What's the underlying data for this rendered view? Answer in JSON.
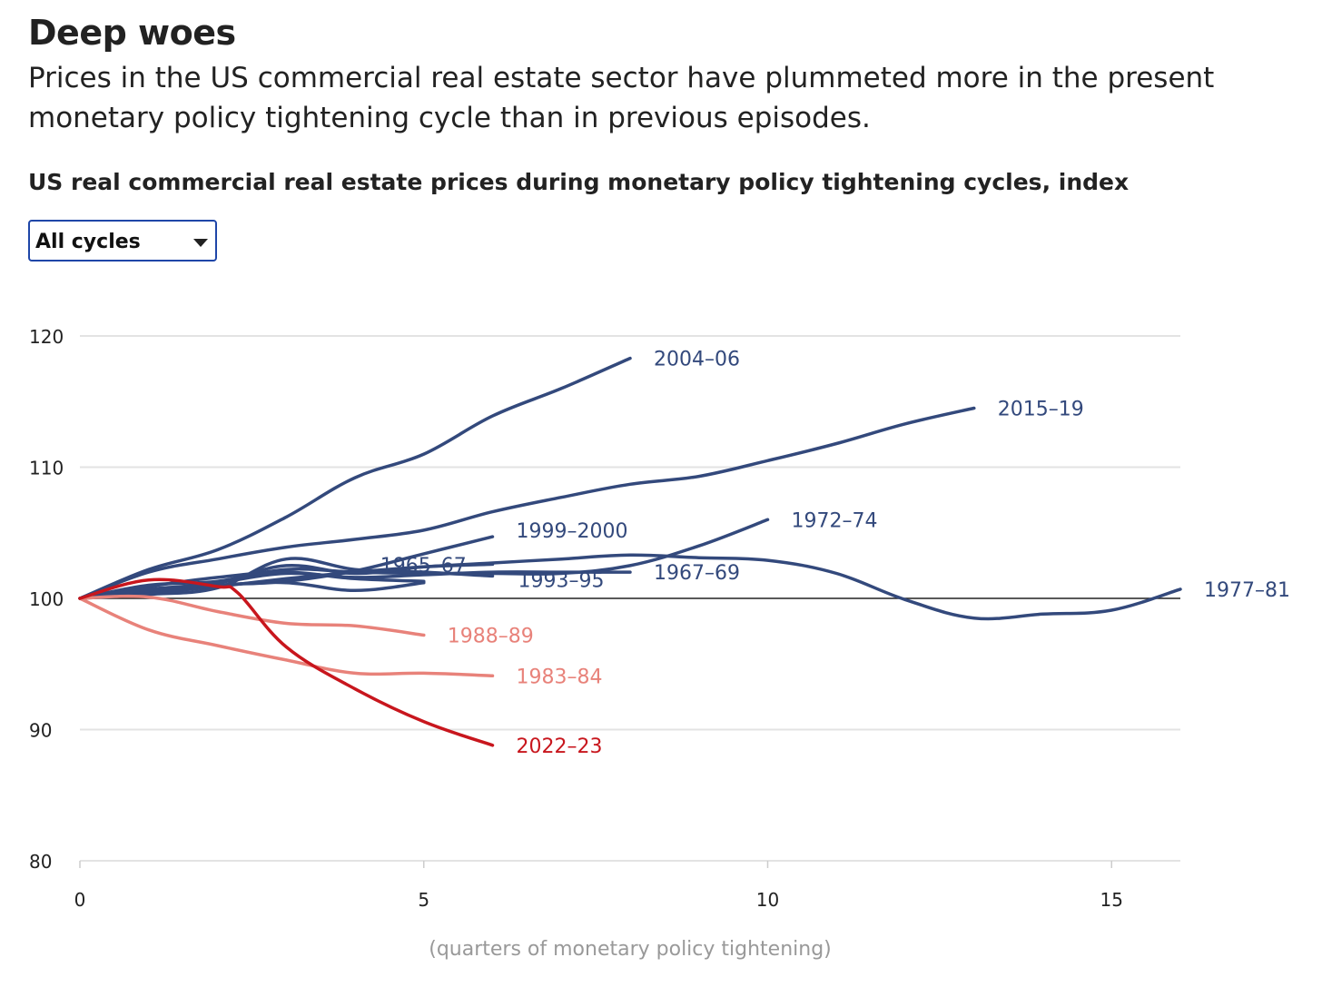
{
  "header": {
    "title": "Deep woes",
    "subtitle": "Prices in the US commercial real estate sector have plummeted more in the present monetary policy tightening cycle than in previous episodes."
  },
  "chart_title": "US real commercial real estate prices during monetary policy tightening cycles, index",
  "dropdown": {
    "selected": "All cycles",
    "icon": "caret-down-icon"
  },
  "colors": {
    "blue": "#33497c",
    "light_red": "#e8827a",
    "red": "#c8161d",
    "grid": "#e3e3e3",
    "baseline": "#222222",
    "axis_label": "#999999"
  },
  "chart_data": {
    "type": "line",
    "xlabel": "(quarters of monetary policy tightening)",
    "ylabel": "",
    "xlim": [
      0,
      16
    ],
    "ylim": [
      80,
      120
    ],
    "xticks": [
      0,
      5,
      10,
      15
    ],
    "yticks": [
      80,
      90,
      100,
      110,
      120
    ],
    "grid": true,
    "reference_line": 100,
    "series": [
      {
        "name": "2004–06",
        "color": "blue",
        "x": [
          0,
          1,
          2,
          3,
          4,
          5,
          6,
          7,
          8
        ],
        "y": [
          100,
          102.2,
          103.7,
          106.2,
          109.2,
          111.0,
          113.9,
          116.0,
          118.3
        ]
      },
      {
        "name": "2015–19",
        "color": "blue",
        "x": [
          0,
          1,
          2,
          3,
          4,
          5,
          6,
          7,
          8,
          9,
          10,
          11,
          12,
          13
        ],
        "y": [
          100,
          102.0,
          103.0,
          103.9,
          104.5,
          105.2,
          106.6,
          107.7,
          108.7,
          109.3,
          110.5,
          111.8,
          113.3,
          114.5
        ]
      },
      {
        "name": "1972–74",
        "color": "blue",
        "x": [
          0,
          1,
          2,
          3,
          4,
          5,
          6,
          7,
          8,
          9,
          10
        ],
        "y": [
          100,
          101.0,
          101.3,
          102.2,
          102.0,
          101.9,
          101.9,
          101.9,
          102.5,
          104.0,
          106.0
        ]
      },
      {
        "name": "1999–2000",
        "color": "blue",
        "x": [
          0,
          1,
          2,
          3,
          4,
          5,
          6
        ],
        "y": [
          100,
          100.5,
          101.0,
          101.3,
          102.1,
          103.4,
          104.7
        ]
      },
      {
        "name": "1977–81",
        "color": "blue",
        "x": [
          0,
          1,
          2,
          3,
          4,
          5,
          6,
          7,
          8,
          9,
          10,
          11,
          12,
          13,
          14,
          15,
          16
        ],
        "y": [
          100,
          100.4,
          100.9,
          101.5,
          102.0,
          102.4,
          102.7,
          103.0,
          103.3,
          103.1,
          102.9,
          101.9,
          99.9,
          98.5,
          98.8,
          99.1,
          100.7
        ]
      },
      {
        "name": "1967–69",
        "color": "blue",
        "x": [
          0,
          1,
          2,
          3,
          4,
          5,
          6,
          7,
          8
        ],
        "y": [
          100,
          100.6,
          101.2,
          101.9,
          101.6,
          101.8,
          102.0,
          102.0,
          102.0
        ]
      },
      {
        "name": "1965–67",
        "color": "blue",
        "x": [
          0,
          1,
          2,
          3,
          4,
          5
        ],
        "y": [
          100,
          100.9,
          101.6,
          102.0,
          101.5,
          101.3
        ]
      },
      {
        "name": "1993–95",
        "color": "blue",
        "x": [
          0,
          1,
          2,
          3,
          4,
          5,
          6
        ],
        "y": [
          100,
          100.3,
          100.8,
          103.0,
          102.2,
          102.0,
          101.7
        ]
      },
      {
        "name": "",
        "color": "blue",
        "x": [
          0,
          1,
          2,
          3,
          4,
          5
        ],
        "y": [
          100,
          100.6,
          101.0,
          101.2,
          100.6,
          101.2
        ]
      },
      {
        "name": "",
        "color": "blue",
        "x": [
          0,
          1,
          2,
          3,
          4,
          5,
          6
        ],
        "y": [
          100,
          100.7,
          101.2,
          102.5,
          101.9,
          102.4,
          102.6
        ]
      },
      {
        "name": "1988–89",
        "color": "light_red",
        "x": [
          0,
          1,
          2,
          3,
          4,
          5
        ],
        "y": [
          100,
          100.1,
          99.0,
          98.1,
          97.9,
          97.2
        ]
      },
      {
        "name": "1983–84",
        "color": "light_red",
        "x": [
          0,
          1,
          2,
          3,
          4,
          5,
          6
        ],
        "y": [
          100,
          97.6,
          96.4,
          95.3,
          94.3,
          94.3,
          94.1
        ]
      },
      {
        "name": "2022–23",
        "color": "red",
        "x": [
          0,
          1,
          2,
          2.3,
          3,
          4,
          5,
          6
        ],
        "y": [
          100,
          101.4,
          100.9,
          100.4,
          96.3,
          93.1,
          90.6,
          88.8
        ]
      }
    ]
  }
}
